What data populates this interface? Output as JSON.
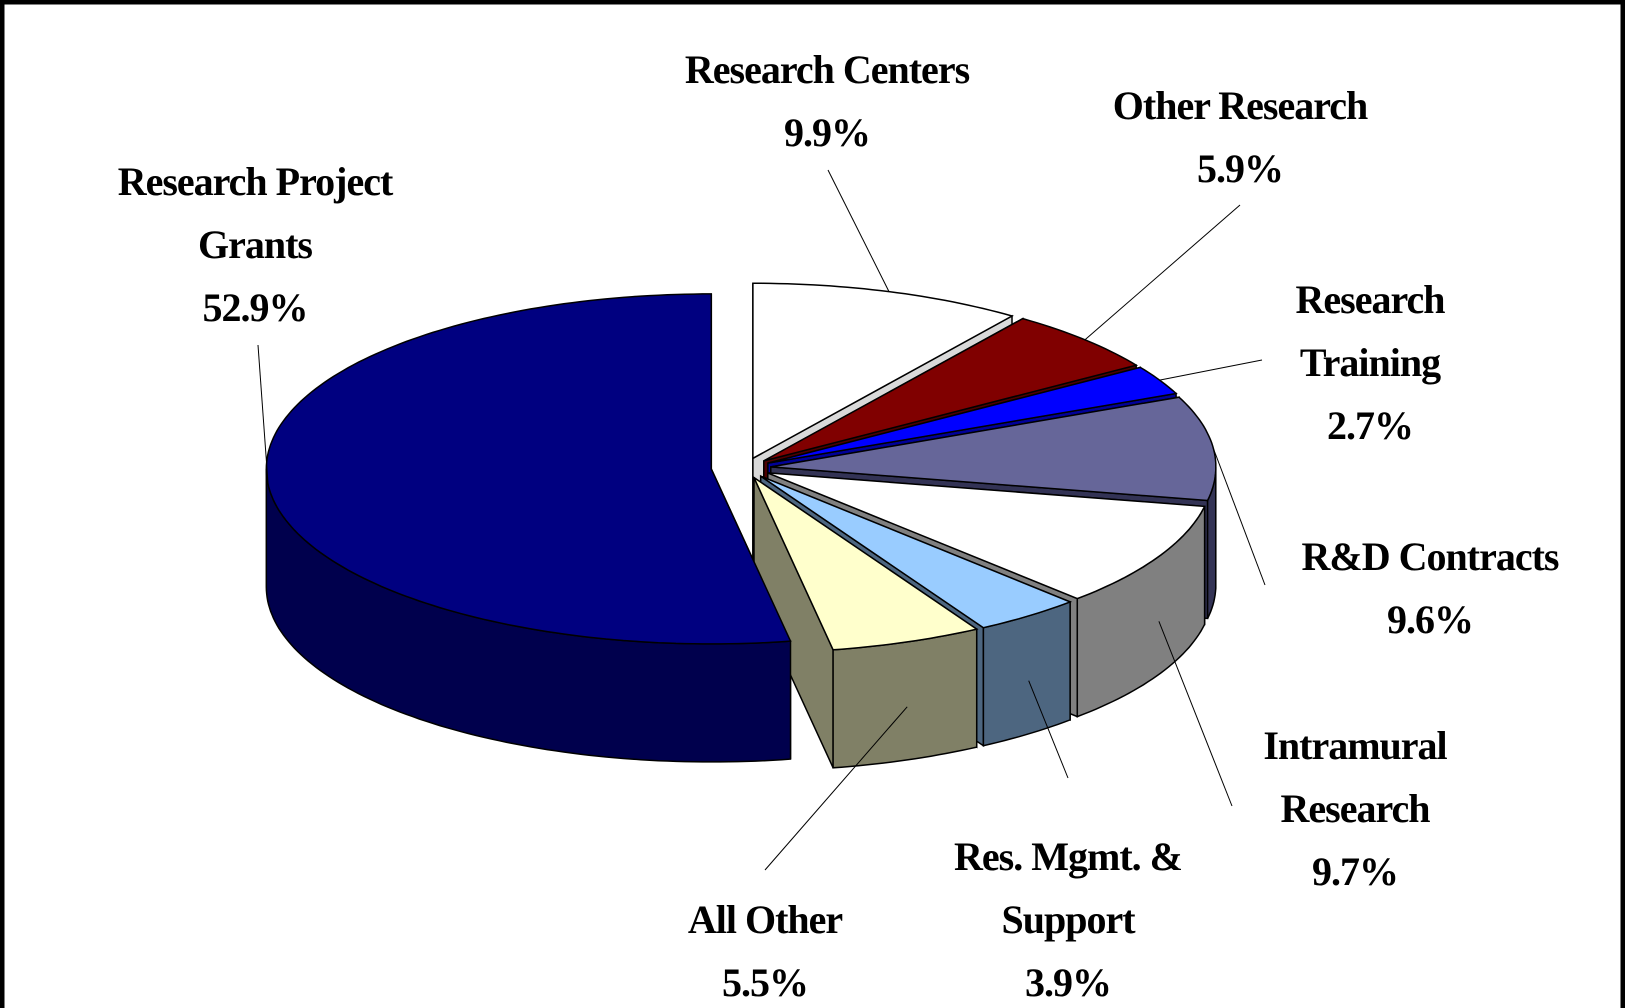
{
  "chart_data": {
    "type": "pie3d",
    "categories": [
      "Research Project Grants",
      "Research Centers",
      "Other Research",
      "Research Training",
      "R&D Contracts",
      "Intramural Research",
      "Res. Mgmt. & Support",
      "All Other"
    ],
    "values": [
      52.9,
      9.9,
      5.9,
      2.7,
      9.6,
      9.7,
      3.9,
      5.5
    ],
    "value_labels": [
      "52.9%",
      "9.9%",
      "5.9%",
      "2.7%",
      "9.6%",
      "9.7%",
      "3.9%",
      "5.5%"
    ],
    "colors": [
      "#000080",
      "#ffffff",
      "#800000",
      "#0000ff",
      "#666699",
      "#ffffff",
      "#99ccff",
      "#ffffcc"
    ],
    "side_colors": [
      "#00004d",
      "#d9d9d9",
      "#4d0000",
      "#000099",
      "#333355",
      "#808080",
      "#4d6680",
      "#808066"
    ]
  }
}
